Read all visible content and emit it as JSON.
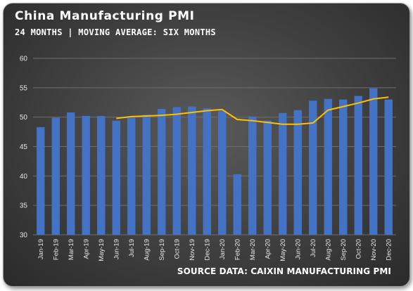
{
  "title": "China Manufacturing PMI",
  "subtitle": "24 MONTHS | MOVING AVERAGE: SIX MONTHS",
  "source": "SOURCE DATA: CAIXIN MANUFACTURING PMI",
  "colors": {
    "bar": "#4472c4",
    "line": "#ffc000",
    "grid": "#6e6e6e",
    "background": "#404040"
  },
  "chart_data": {
    "type": "bar",
    "categories": [
      "Jan-19",
      "Feb-19",
      "Mar-19",
      "Apr-19",
      "May-19",
      "Jun-19",
      "Jul-19",
      "Aug-19",
      "Sep-19",
      "Oct-19",
      "Nov-19",
      "Dec-19",
      "Jan-20",
      "Feb-20",
      "Mar-20",
      "Apr-20",
      "May-20",
      "Jun-20",
      "Jul-20",
      "Aug-20",
      "Sep-20",
      "Oct-20",
      "Nov-20",
      "Dec-20"
    ],
    "series": [
      {
        "type": "bar",
        "values": [
          48.3,
          49.9,
          50.8,
          50.2,
          50.2,
          49.4,
          49.9,
          50.4,
          51.4,
          51.7,
          51.8,
          51.5,
          51.1,
          40.3,
          50.1,
          49.4,
          50.7,
          51.2,
          52.8,
          53.1,
          53.0,
          53.6,
          54.9,
          53.0
        ]
      },
      {
        "type": "line",
        "values": [
          null,
          null,
          null,
          null,
          null,
          49.8,
          50.1,
          50.2,
          50.3,
          50.5,
          50.8,
          51.1,
          51.3,
          49.6,
          49.4,
          49.1,
          48.8,
          48.8,
          49.0,
          51.2,
          51.8,
          52.4,
          53.1,
          53.4
        ]
      }
    ],
    "ylim": [
      30,
      60
    ],
    "yticks": [
      30,
      35,
      40,
      45,
      50,
      55,
      60
    ],
    "grid": true,
    "legend": "none"
  }
}
